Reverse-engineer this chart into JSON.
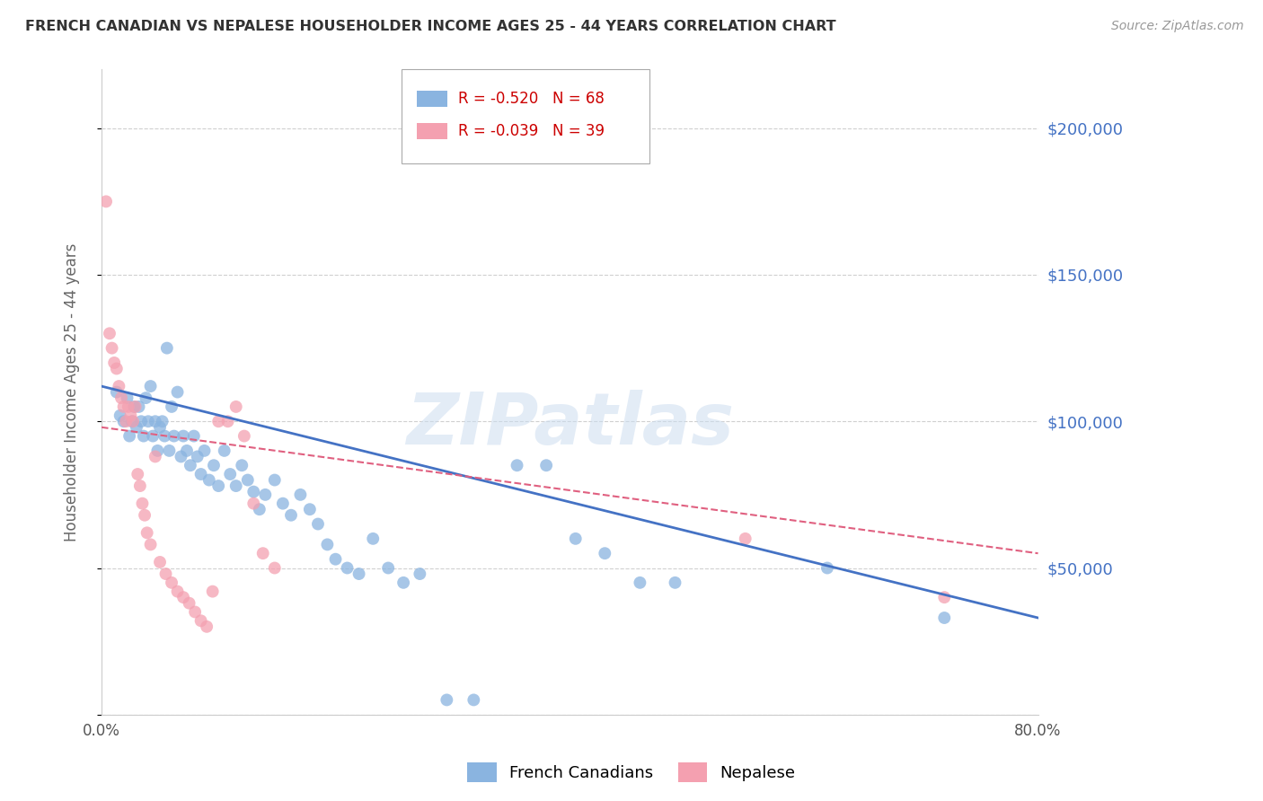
{
  "title": "FRENCH CANADIAN VS NEPALESE HOUSEHOLDER INCOME AGES 25 - 44 YEARS CORRELATION CHART",
  "source": "Source: ZipAtlas.com",
  "ylabel": "Householder Income Ages 25 - 44 years",
  "watermark": "ZIPatlas",
  "xlim": [
    0.0,
    0.8
  ],
  "ylim": [
    0,
    220000
  ],
  "yticks": [
    0,
    50000,
    100000,
    150000,
    200000
  ],
  "xticks": [
    0.0,
    0.1,
    0.2,
    0.3,
    0.4,
    0.5,
    0.6,
    0.7,
    0.8
  ],
  "xtick_labels": [
    "0.0%",
    "",
    "",
    "",
    "",
    "",
    "",
    "",
    "80.0%"
  ],
  "ytick_labels": [
    "",
    "$50,000",
    "$100,000",
    "$150,000",
    "$200,000"
  ],
  "legend_fc_label": "French Canadians",
  "legend_np_label": "Nepalese",
  "fc_R": "-0.520",
  "fc_N": "68",
  "np_R": "-0.039",
  "np_N": "39",
  "fc_color": "#8ab4e0",
  "np_color": "#f4a0b0",
  "fc_line_color": "#4472c4",
  "np_line_color": "#e06080",
  "grid_color": "#d0d0d0",
  "right_label_color": "#4472c4",
  "french_canadian_x": [
    0.013,
    0.016,
    0.019,
    0.022,
    0.024,
    0.026,
    0.028,
    0.03,
    0.032,
    0.034,
    0.036,
    0.038,
    0.04,
    0.042,
    0.044,
    0.046,
    0.048,
    0.05,
    0.052,
    0.054,
    0.056,
    0.058,
    0.06,
    0.062,
    0.065,
    0.068,
    0.07,
    0.073,
    0.076,
    0.079,
    0.082,
    0.085,
    0.088,
    0.092,
    0.096,
    0.1,
    0.105,
    0.11,
    0.115,
    0.12,
    0.125,
    0.13,
    0.135,
    0.14,
    0.148,
    0.155,
    0.162,
    0.17,
    0.178,
    0.185,
    0.193,
    0.2,
    0.21,
    0.22,
    0.232,
    0.245,
    0.258,
    0.272,
    0.295,
    0.318,
    0.355,
    0.38,
    0.405,
    0.43,
    0.46,
    0.49,
    0.62,
    0.72
  ],
  "french_canadian_y": [
    110000,
    102000,
    100000,
    108000,
    95000,
    100000,
    105000,
    98000,
    105000,
    100000,
    95000,
    108000,
    100000,
    112000,
    95000,
    100000,
    90000,
    98000,
    100000,
    95000,
    125000,
    90000,
    105000,
    95000,
    110000,
    88000,
    95000,
    90000,
    85000,
    95000,
    88000,
    82000,
    90000,
    80000,
    85000,
    78000,
    90000,
    82000,
    78000,
    85000,
    80000,
    76000,
    70000,
    75000,
    80000,
    72000,
    68000,
    75000,
    70000,
    65000,
    58000,
    53000,
    50000,
    48000,
    60000,
    50000,
    45000,
    48000,
    5000,
    5000,
    85000,
    85000,
    60000,
    55000,
    45000,
    45000,
    50000,
    33000
  ],
  "nepalese_x": [
    0.004,
    0.007,
    0.009,
    0.011,
    0.013,
    0.015,
    0.017,
    0.019,
    0.021,
    0.023,
    0.025,
    0.027,
    0.029,
    0.031,
    0.033,
    0.035,
    0.037,
    0.039,
    0.042,
    0.046,
    0.05,
    0.055,
    0.06,
    0.065,
    0.07,
    0.075,
    0.08,
    0.085,
    0.09,
    0.095,
    0.1,
    0.108,
    0.115,
    0.122,
    0.13,
    0.138,
    0.148,
    0.55,
    0.72
  ],
  "nepalese_y": [
    175000,
    130000,
    125000,
    120000,
    118000,
    112000,
    108000,
    105000,
    100000,
    105000,
    102000,
    100000,
    105000,
    82000,
    78000,
    72000,
    68000,
    62000,
    58000,
    88000,
    52000,
    48000,
    45000,
    42000,
    40000,
    38000,
    35000,
    32000,
    30000,
    42000,
    100000,
    100000,
    105000,
    95000,
    72000,
    55000,
    50000,
    60000,
    40000
  ]
}
